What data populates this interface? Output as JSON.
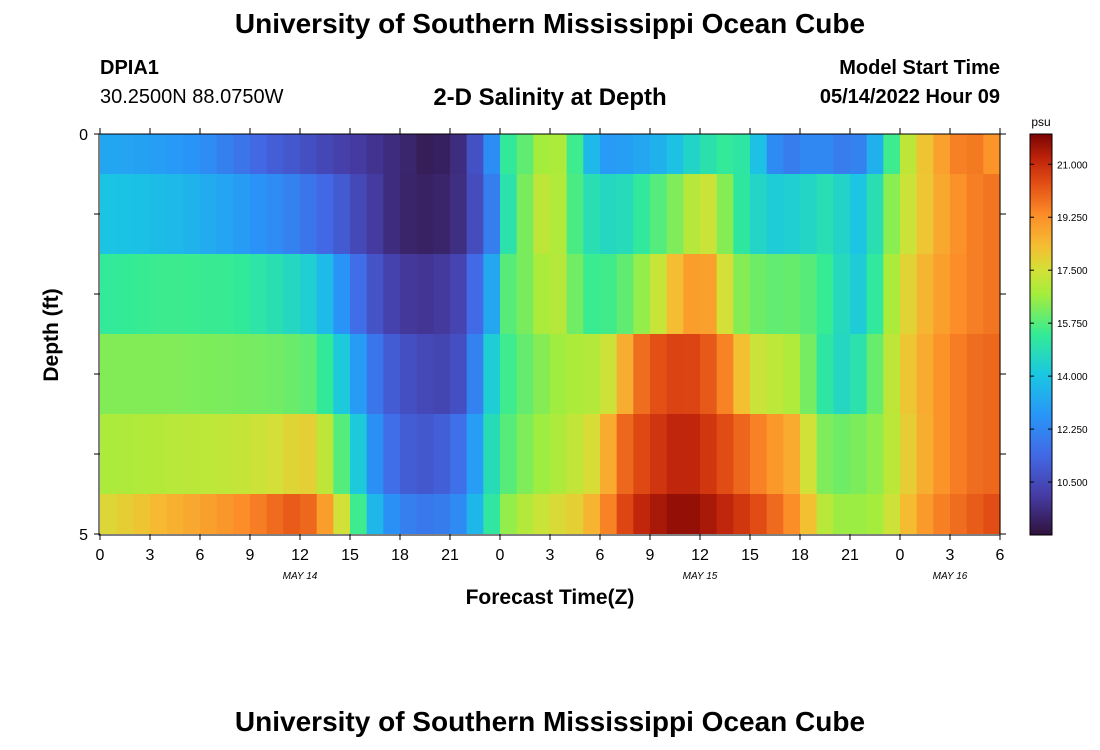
{
  "header": {
    "title": "University of Southern Mississippi Ocean Cube",
    "station": "DPIA1",
    "coords": "30.2500N  88.0750W",
    "subtitle": "2-D Salinity at Depth",
    "model_start_label": "Model Start Time",
    "model_start_value": "05/14/2022 Hour 09"
  },
  "footer": {
    "title": "University of Southern Mississippi Ocean Cube"
  },
  "chart_data": {
    "type": "heatmap",
    "xlabel": "Forecast Time(Z)",
    "ylabel": "Depth (ft)",
    "x_tick_labels": [
      "0",
      "3",
      "6",
      "9",
      "12",
      "15",
      "18",
      "21",
      "0",
      "3",
      "6",
      "9",
      "12",
      "15",
      "18",
      "21",
      "0",
      "3",
      "6"
    ],
    "date_labels": [
      {
        "text": "MAY 14",
        "tick_index": 4
      },
      {
        "text": "MAY 15",
        "tick_index": 12
      },
      {
        "text": "MAY 16",
        "tick_index": 17
      }
    ],
    "y_tick_labels": [
      "0",
      "5"
    ],
    "ylim": [
      0,
      5
    ],
    "colorbar": {
      "unit": "psu",
      "range": [
        8.75,
        22.0
      ],
      "tick_labels": [
        "21.000",
        "19.250",
        "17.500",
        "15.750",
        "14.000",
        "12.250",
        "10.500"
      ],
      "tick_values": [
        21.0,
        19.25,
        17.5,
        15.75,
        14.0,
        12.25,
        10.5
      ]
    },
    "depth_layers": [
      {
        "depth_range": [
          0,
          0.5
        ],
        "keyframes": [
          [
            0,
            13.2
          ],
          [
            3,
            13.0
          ],
          [
            6,
            12.6
          ],
          [
            10,
            11.2
          ],
          [
            14,
            10.3
          ],
          [
            18,
            9.5
          ],
          [
            20,
            9.0
          ],
          [
            22,
            9.8
          ],
          [
            23.5,
            12.5
          ],
          [
            24.5,
            15.3
          ],
          [
            26,
            16.2
          ],
          [
            27,
            17.2
          ],
          [
            28,
            16.5
          ],
          [
            29,
            14.5
          ],
          [
            30,
            12.8
          ],
          [
            32,
            13.0
          ],
          [
            34,
            13.6
          ],
          [
            36,
            14.8
          ],
          [
            38,
            15.5
          ],
          [
            39,
            14.8
          ],
          [
            40,
            13.0
          ],
          [
            41,
            11.8
          ],
          [
            43,
            12.5
          ],
          [
            45,
            11.8
          ],
          [
            46,
            12.4
          ],
          [
            47,
            14.5
          ],
          [
            48,
            16.5
          ],
          [
            49,
            17.8
          ],
          [
            50,
            18.5
          ],
          [
            51,
            19.3
          ],
          [
            52,
            19.8
          ],
          [
            53,
            19.5
          ],
          [
            54,
            18.8
          ]
        ]
      },
      {
        "depth_range": [
          0.5,
          1.5
        ],
        "keyframes": [
          [
            0,
            14.0
          ],
          [
            2,
            13.9
          ],
          [
            5,
            13.6
          ],
          [
            8,
            13.0
          ],
          [
            11,
            12.3
          ],
          [
            14,
            11.2
          ],
          [
            16,
            10.2
          ],
          [
            18,
            9.4
          ],
          [
            20,
            9.2
          ],
          [
            22,
            9.8
          ],
          [
            23.5,
            12.0
          ],
          [
            24.5,
            15.0
          ],
          [
            26,
            16.8
          ],
          [
            27,
            17.5
          ],
          [
            28,
            16.3
          ],
          [
            29,
            15.0
          ],
          [
            31,
            14.5
          ],
          [
            33,
            15.5
          ],
          [
            35,
            16.5
          ],
          [
            36,
            17.5
          ],
          [
            37,
            17.2
          ],
          [
            38,
            15.5
          ],
          [
            40,
            14.2
          ],
          [
            42,
            14.4
          ],
          [
            44,
            15.0
          ],
          [
            45,
            14.0
          ],
          [
            46,
            14.0
          ],
          [
            47,
            15.8
          ],
          [
            48,
            17.0
          ],
          [
            50,
            18.5
          ],
          [
            52,
            19.5
          ],
          [
            54,
            19.8
          ]
        ]
      },
      {
        "depth_range": [
          1.5,
          2.5
        ],
        "keyframes": [
          [
            0,
            15.3
          ],
          [
            4,
            15.5
          ],
          [
            8,
            15.4
          ],
          [
            11,
            14.8
          ],
          [
            13,
            14.2
          ],
          [
            14,
            13.2
          ],
          [
            16,
            11.0
          ],
          [
            18,
            10.0
          ],
          [
            20,
            9.8
          ],
          [
            22,
            10.5
          ],
          [
            23.5,
            13.2
          ],
          [
            24.5,
            15.8
          ],
          [
            26,
            16.4
          ],
          [
            27,
            17.2
          ],
          [
            28,
            16.8
          ],
          [
            29,
            15.4
          ],
          [
            31,
            15.6
          ],
          [
            33,
            16.8
          ],
          [
            34,
            17.8
          ],
          [
            35,
            18.8
          ],
          [
            36,
            19.2
          ],
          [
            37,
            18.6
          ],
          [
            38,
            16.5
          ],
          [
            40,
            15.9
          ],
          [
            42,
            16.0
          ],
          [
            44,
            15.2
          ],
          [
            45,
            14.2
          ],
          [
            46,
            14.3
          ],
          [
            47,
            16.2
          ],
          [
            48,
            17.5
          ],
          [
            50,
            18.8
          ],
          [
            52,
            19.5
          ],
          [
            54,
            19.8
          ]
        ]
      },
      {
        "depth_range": [
          2.5,
          3.5
        ],
        "keyframes": [
          [
            0,
            16.3
          ],
          [
            4,
            16.3
          ],
          [
            8,
            16.2
          ],
          [
            11,
            16.1
          ],
          [
            13,
            15.8
          ],
          [
            14,
            14.8
          ],
          [
            15,
            13.5
          ],
          [
            16,
            12.3
          ],
          [
            17,
            11.2
          ],
          [
            19,
            10.5
          ],
          [
            21,
            10.3
          ],
          [
            22,
            11.0
          ],
          [
            23.5,
            14.3
          ],
          [
            24.5,
            15.5
          ],
          [
            26,
            16.2
          ],
          [
            28,
            16.8
          ],
          [
            30,
            17.0
          ],
          [
            31,
            17.8
          ],
          [
            32,
            19.5
          ],
          [
            33,
            20.2
          ],
          [
            35,
            20.7
          ],
          [
            37,
            20.0
          ],
          [
            38,
            19.0
          ],
          [
            39,
            17.5
          ],
          [
            41,
            17.0
          ],
          [
            42,
            16.8
          ],
          [
            43,
            15.5
          ],
          [
            44,
            14.8
          ],
          [
            45,
            14.5
          ],
          [
            46,
            15.5
          ],
          [
            47,
            16.5
          ],
          [
            48,
            17.8
          ],
          [
            50,
            19.0
          ],
          [
            52,
            19.8
          ],
          [
            54,
            20.0
          ]
        ]
      },
      {
        "depth_range": [
          3.5,
          4.5
        ],
        "keyframes": [
          [
            0,
            16.8
          ],
          [
            4,
            17.0
          ],
          [
            8,
            17.2
          ],
          [
            11,
            17.6
          ],
          [
            12,
            18.0
          ],
          [
            13,
            17.8
          ],
          [
            14,
            16.5
          ],
          [
            15,
            15.0
          ],
          [
            16,
            13.3
          ],
          [
            17,
            11.8
          ],
          [
            19,
            10.8
          ],
          [
            21,
            11.2
          ],
          [
            22,
            12.0
          ],
          [
            23.5,
            14.8
          ],
          [
            24.5,
            15.8
          ],
          [
            26,
            16.5
          ],
          [
            28,
            17.0
          ],
          [
            29,
            17.4
          ],
          [
            30,
            17.8
          ],
          [
            31,
            19.6
          ],
          [
            32,
            20.3
          ],
          [
            34,
            21.0
          ],
          [
            35,
            21.3
          ],
          [
            36,
            21.0
          ],
          [
            38,
            20.2
          ],
          [
            40,
            19.3
          ],
          [
            42,
            18.5
          ],
          [
            43,
            16.5
          ],
          [
            44,
            16.0
          ],
          [
            46,
            16.3
          ],
          [
            47,
            16.6
          ],
          [
            48,
            17.6
          ],
          [
            50,
            19.0
          ],
          [
            52,
            19.8
          ],
          [
            54,
            20.0
          ]
        ]
      },
      {
        "depth_range": [
          4.5,
          5
        ],
        "keyframes": [
          [
            0,
            17.6
          ],
          [
            4,
            18.5
          ],
          [
            8,
            19.2
          ],
          [
            11,
            20.0
          ],
          [
            12,
            20.3
          ],
          [
            13,
            19.6
          ],
          [
            14,
            18.4
          ],
          [
            15,
            16.6
          ],
          [
            16,
            14.4
          ],
          [
            17,
            12.8
          ],
          [
            19,
            11.8
          ],
          [
            21,
            12.0
          ],
          [
            22,
            12.8
          ],
          [
            23.5,
            15.2
          ],
          [
            24.5,
            16.5
          ],
          [
            26,
            17.2
          ],
          [
            28,
            17.8
          ],
          [
            29,
            18.0
          ],
          [
            30,
            19.0
          ],
          [
            31,
            20.0
          ],
          [
            32,
            21.0
          ],
          [
            34,
            21.6
          ],
          [
            35,
            21.8
          ],
          [
            36,
            21.6
          ],
          [
            38,
            21.0
          ],
          [
            40,
            20.2
          ],
          [
            42,
            19.0
          ],
          [
            43,
            17.5
          ],
          [
            44,
            16.6
          ],
          [
            46,
            16.6
          ],
          [
            47,
            16.8
          ],
          [
            48,
            18.0
          ],
          [
            50,
            19.4
          ],
          [
            52,
            20.0
          ],
          [
            54,
            20.5
          ]
        ]
      }
    ]
  }
}
